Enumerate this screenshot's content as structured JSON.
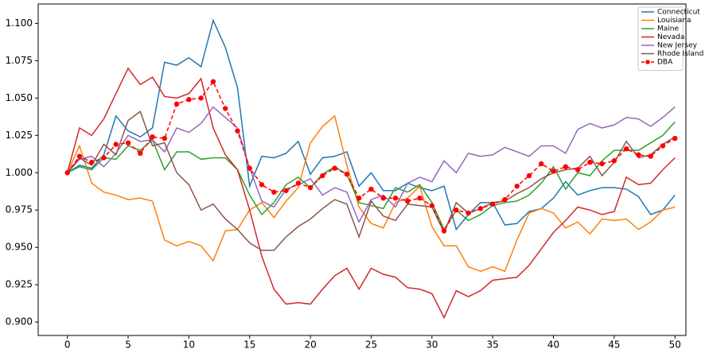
{
  "chart_data": {
    "type": "line",
    "x": [
      0,
      1,
      2,
      3,
      4,
      5,
      6,
      7,
      8,
      9,
      10,
      11,
      12,
      13,
      14,
      15,
      16,
      17,
      18,
      19,
      20,
      21,
      22,
      23,
      24,
      25,
      26,
      27,
      28,
      29,
      30,
      31,
      32,
      33,
      34,
      35,
      36,
      37,
      38,
      39,
      40,
      41,
      42,
      43,
      44,
      45,
      46,
      47,
      48,
      49,
      50
    ],
    "xlim": [
      -2.4,
      50.9
    ],
    "xticks": [
      0,
      5,
      10,
      15,
      20,
      25,
      30,
      35,
      40,
      45,
      50
    ],
    "ylim": [
      0.891,
      1.113
    ],
    "yticks": [
      {
        "value": 0.9,
        "label": "0.900"
      },
      {
        "value": 0.925,
        "label": "0.925"
      },
      {
        "value": 0.95,
        "label": "0.950"
      },
      {
        "value": 0.975,
        "label": "0.975"
      },
      {
        "value": 1.0,
        "label": "1.000"
      },
      {
        "value": 1.025,
        "label": "1.025"
      },
      {
        "value": 1.05,
        "label": "1.050"
      },
      {
        "value": 1.075,
        "label": "1.075"
      },
      {
        "value": 1.1,
        "label": "1.100"
      }
    ],
    "legend_loc": "upper right",
    "series": [
      {
        "name": "Connecticut",
        "color": "#1f77b4",
        "values": [
          1.0,
          1.005,
          1.003,
          1.012,
          1.038,
          1.028,
          1.024,
          1.03,
          1.074,
          1.072,
          1.077,
          1.071,
          1.102,
          1.084,
          1.057,
          0.991,
          1.011,
          1.01,
          1.013,
          1.021,
          0.999,
          1.01,
          1.011,
          1.014,
          0.991,
          1.0,
          0.988,
          0.988,
          0.993,
          0.99,
          0.988,
          0.991,
          0.962,
          0.972,
          0.98,
          0.98,
          0.965,
          0.966,
          0.974,
          0.976,
          0.983,
          0.994,
          0.985,
          0.988,
          0.99,
          0.99,
          0.989,
          0.984,
          0.972,
          0.975,
          0.985
        ]
      },
      {
        "name": "Louisiana",
        "color": "#ff7f0e",
        "values": [
          1.0,
          1.018,
          0.993,
          0.987,
          0.985,
          0.982,
          0.983,
          0.981,
          0.955,
          0.951,
          0.954,
          0.951,
          0.941,
          0.961,
          0.962,
          0.975,
          0.98,
          0.97,
          0.981,
          0.99,
          1.02,
          1.031,
          1.038,
          1.005,
          0.977,
          0.966,
          0.963,
          0.98,
          0.983,
          0.991,
          0.964,
          0.951,
          0.951,
          0.937,
          0.934,
          0.937,
          0.934,
          0.955,
          0.973,
          0.976,
          0.973,
          0.963,
          0.967,
          0.959,
          0.969,
          0.968,
          0.969,
          0.962,
          0.967,
          0.975,
          0.977
        ]
      },
      {
        "name": "Maine",
        "color": "#2ca02c",
        "values": [
          1.0,
          1.004,
          1.002,
          1.01,
          1.009,
          1.018,
          1.015,
          1.022,
          1.002,
          1.014,
          1.014,
          1.009,
          1.01,
          1.01,
          1.002,
          0.985,
          0.972,
          0.98,
          0.992,
          0.997,
          0.99,
          0.999,
          1.004,
          0.999,
          0.98,
          0.978,
          0.976,
          0.99,
          0.987,
          0.992,
          0.98,
          0.962,
          0.975,
          0.968,
          0.972,
          0.978,
          0.98,
          0.981,
          0.985,
          0.993,
          1.004,
          0.989,
          1.0,
          0.998,
          1.008,
          1.015,
          1.015,
          1.015,
          1.02,
          1.025,
          1.034
        ]
      },
      {
        "name": "Nevada",
        "color": "#d62728",
        "values": [
          1.0,
          1.03,
          1.025,
          1.036,
          1.053,
          1.07,
          1.059,
          1.064,
          1.051,
          1.05,
          1.053,
          1.063,
          1.03,
          1.012,
          1.002,
          0.975,
          0.944,
          0.922,
          0.912,
          0.913,
          0.912,
          0.922,
          0.931,
          0.936,
          0.922,
          0.936,
          0.932,
          0.93,
          0.923,
          0.922,
          0.919,
          0.903,
          0.921,
          0.917,
          0.921,
          0.928,
          0.929,
          0.93,
          0.938,
          0.949,
          0.96,
          0.968,
          0.977,
          0.975,
          0.972,
          0.974,
          0.997,
          0.992,
          0.993,
          1.002,
          1.01
        ]
      },
      {
        "name": "New Jersey",
        "color": "#9467bd",
        "values": [
          1.0,
          1.009,
          1.011,
          1.004,
          1.013,
          1.025,
          1.021,
          1.022,
          1.014,
          1.03,
          1.027,
          1.033,
          1.044,
          1.037,
          1.03,
          1.003,
          0.981,
          0.977,
          0.989,
          0.992,
          0.996,
          0.985,
          0.99,
          0.987,
          0.967,
          0.982,
          0.985,
          0.977,
          0.993,
          0.997,
          0.994,
          1.008,
          1.0,
          1.013,
          1.011,
          1.012,
          1.017,
          1.014,
          1.011,
          1.018,
          1.018,
          1.013,
          1.029,
          1.033,
          1.03,
          1.032,
          1.037,
          1.036,
          1.031,
          1.037,
          1.044
        ]
      },
      {
        "name": "Rhode Island",
        "color": "#8c564b",
        "values": [
          1.0,
          1.01,
          1.005,
          1.019,
          1.012,
          1.035,
          1.041,
          1.018,
          1.02,
          1.0,
          0.992,
          0.975,
          0.979,
          0.969,
          0.962,
          0.953,
          0.948,
          0.948,
          0.957,
          0.964,
          0.969,
          0.976,
          0.982,
          0.979,
          0.957,
          0.981,
          0.971,
          0.968,
          0.979,
          0.978,
          0.977,
          0.96,
          0.98,
          0.973,
          0.976,
          0.98,
          0.981,
          0.986,
          0.99,
          0.996,
          1.0,
          1.002,
          1.003,
          1.011,
          0.998,
          1.007,
          1.021,
          1.01,
          1.012,
          1.019,
          1.024
        ]
      },
      {
        "name": "DBA",
        "color": "#ff0000",
        "dashed": true,
        "marker": "o",
        "values": [
          1.0,
          1.011,
          1.007,
          1.01,
          1.019,
          1.02,
          1.013,
          1.024,
          1.023,
          1.046,
          1.049,
          1.05,
          1.061,
          1.043,
          1.028,
          1.003,
          0.992,
          0.987,
          0.988,
          0.993,
          0.99,
          0.998,
          1.003,
          0.999,
          0.983,
          0.989,
          0.983,
          0.983,
          0.981,
          0.983,
          0.978,
          0.961,
          0.975,
          0.973,
          0.976,
          0.979,
          0.982,
          0.991,
          0.998,
          1.006,
          1.001,
          1.004,
          1.002,
          1.007,
          1.006,
          1.008,
          1.016,
          1.012,
          1.011,
          1.018,
          1.023
        ]
      }
    ]
  }
}
